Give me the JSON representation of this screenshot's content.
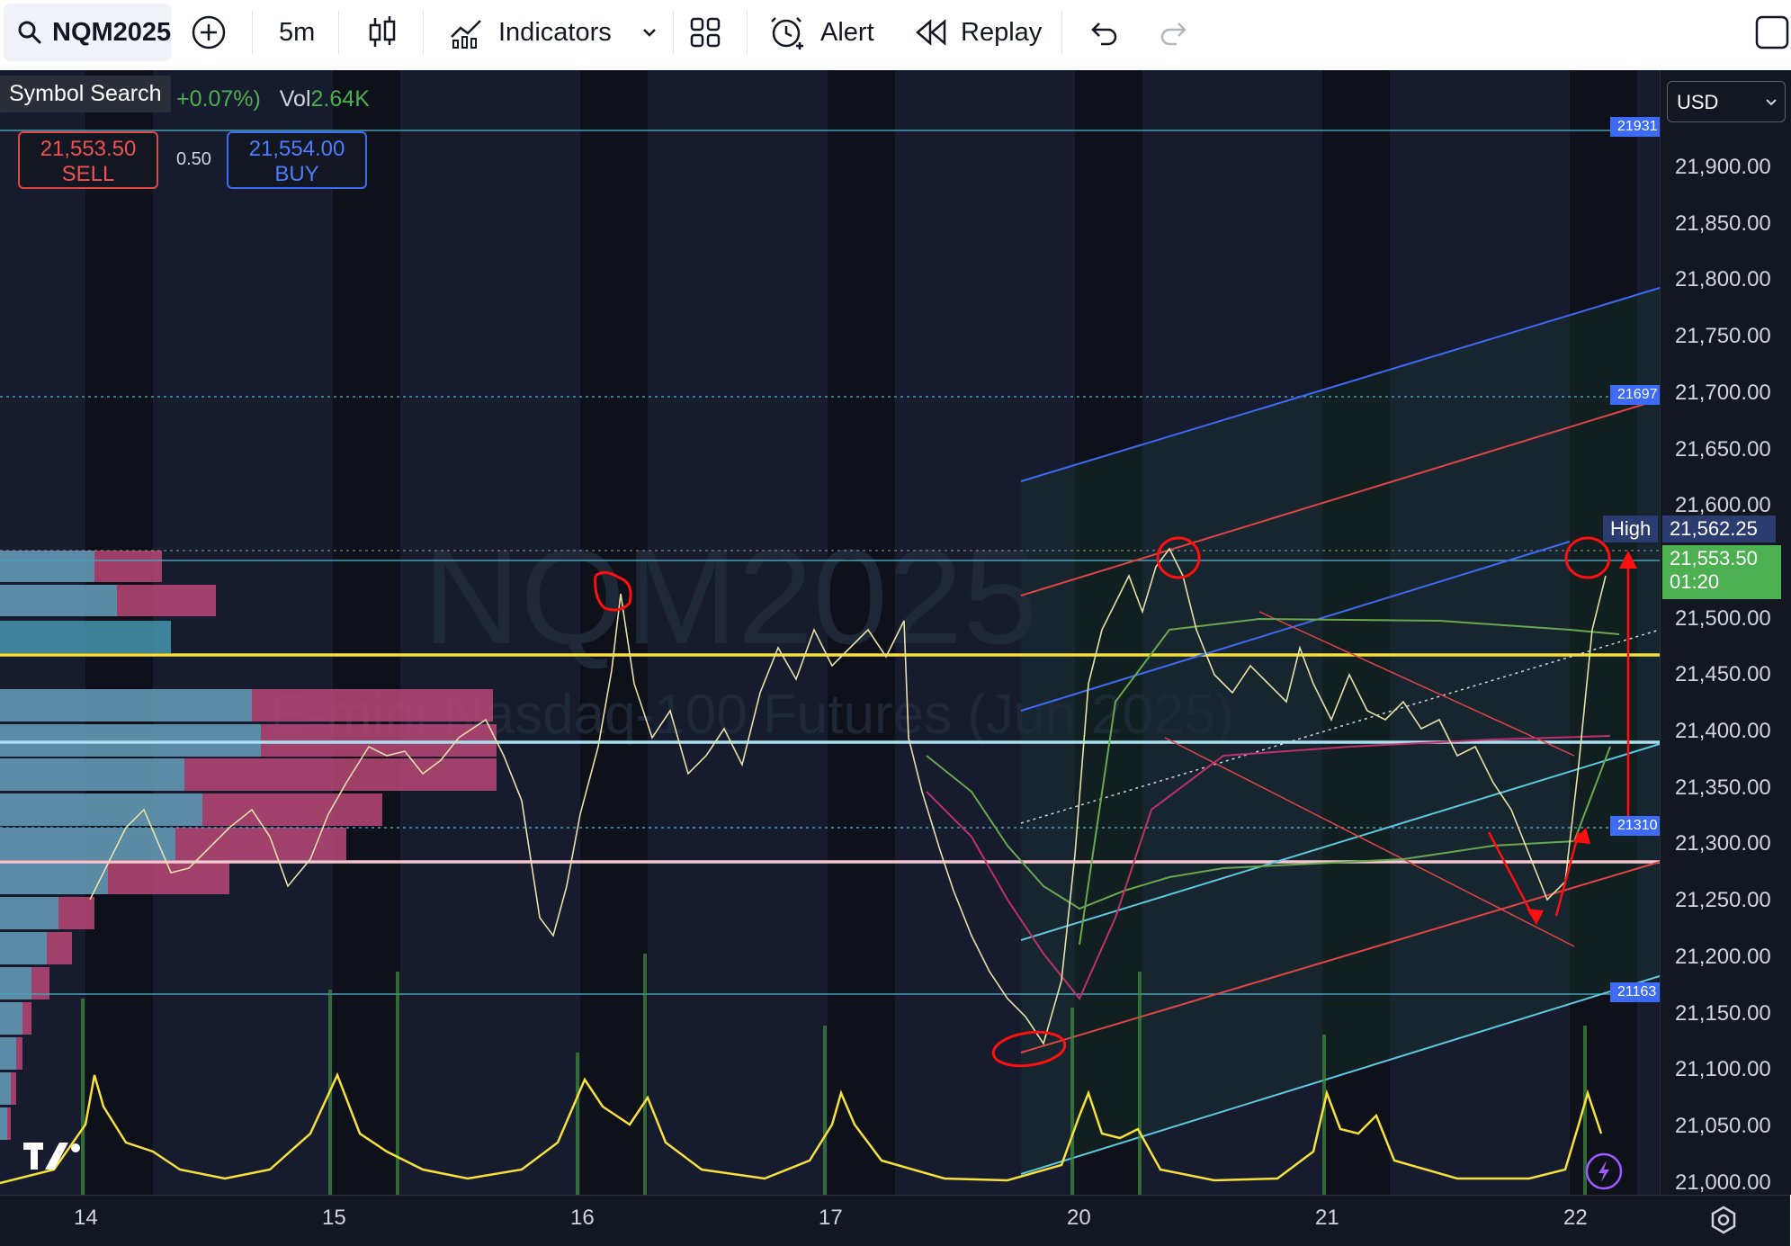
{
  "toolbar": {
    "symbol": "NQM2025",
    "interval": "5m",
    "indicators_label": "Indicators",
    "alert_label": "Alert",
    "replay_label": "Replay"
  },
  "tooltip": {
    "symbol_search": "Symbol Search"
  },
  "legend": {
    "change": "+0.07%)",
    "vol_label": "Vol",
    "vol_value": "2.64K"
  },
  "trade": {
    "sell_price": "21,553.50",
    "sell_label": "SELL",
    "spread": "0.50",
    "buy_price": "21,554.00",
    "buy_label": "BUY"
  },
  "watermark": {
    "symbol": "NQM2025",
    "description": "E-mini Nasdaq-100 Futures (Jun 2025)"
  },
  "currency": "USD",
  "price_axis": [
    "21,900.00",
    "21,850.00",
    "21,800.00",
    "21,750.00",
    "21,700.00",
    "21,650.00",
    "21,600.00",
    "21,550.00",
    "21,500.00",
    "21,450.00",
    "21,400.00",
    "21,350.00",
    "21,300.00",
    "21,250.00",
    "21,200.00",
    "21,150.00",
    "21,100.00",
    "21,050.00",
    "21,000.00"
  ],
  "time_axis": [
    "14",
    "15",
    "16",
    "17",
    "20",
    "21",
    "22"
  ],
  "price_tags": {
    "high_label": "High",
    "high_value": "21,562.25",
    "last_value": "21,553.50",
    "countdown": "01:20",
    "line_1": "21931",
    "line_2": "21697",
    "line_3": "21310",
    "line_4": "21163"
  },
  "colors": {
    "background": "#131722",
    "sell": "#f05252",
    "buy": "#4d7cff",
    "last_price": "#4caf50",
    "high_tag": "#2b3c70",
    "support_yellow": "#f5e03c",
    "volume_profile_blue": "#4a9eb5",
    "volume_profile_pink": "#c44a7a",
    "annotation_red": "#ff1010"
  }
}
